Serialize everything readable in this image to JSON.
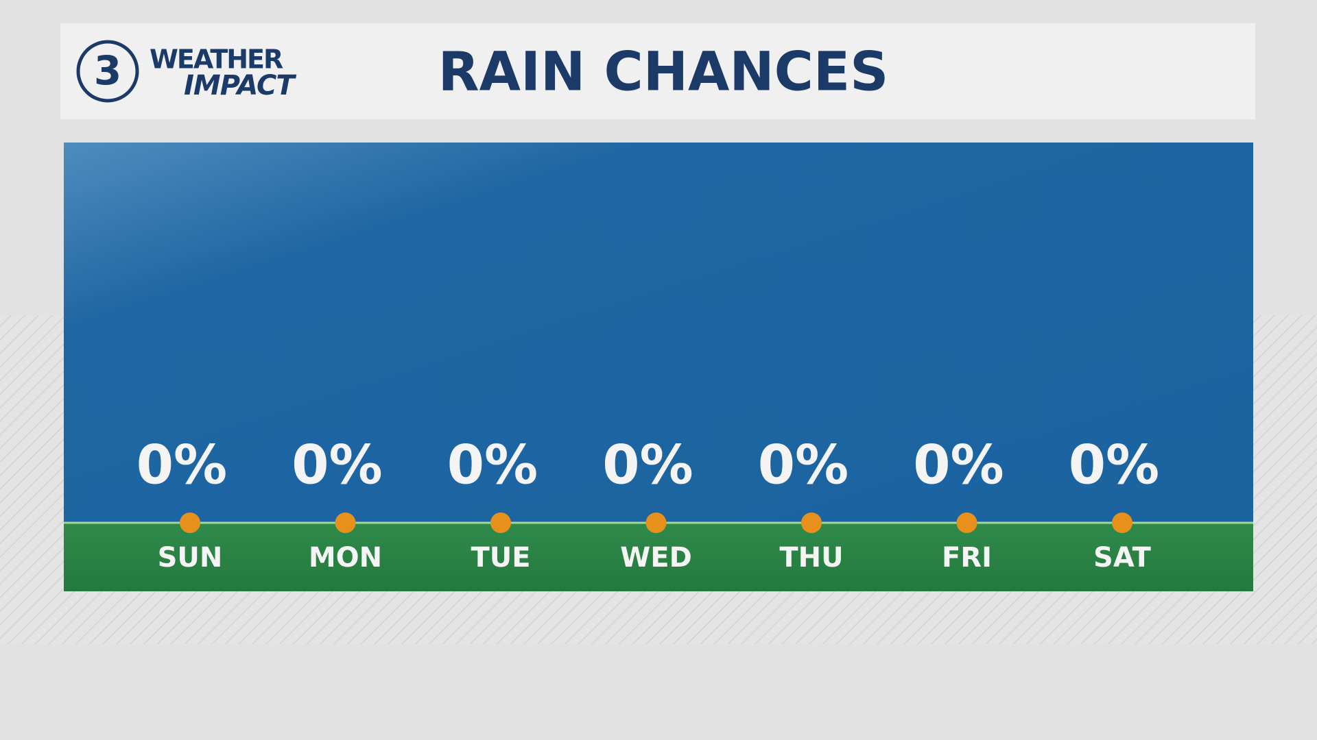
{
  "logo": {
    "number": "3",
    "line1": "WEATHER",
    "line2": "IMPACT"
  },
  "chart_data": {
    "type": "rain",
    "title": "RAIN CHANCES",
    "categories": [
      "SUN",
      "MON",
      "TUE",
      "WED",
      "THU",
      "FRI",
      "SAT"
    ],
    "values": [
      0,
      0,
      0,
      0,
      0,
      0,
      0
    ],
    "value_labels": [
      "0%",
      "0%",
      "0%",
      "0%",
      "0%",
      "0%",
      "0%"
    ],
    "color": "#e8901c"
  }
}
